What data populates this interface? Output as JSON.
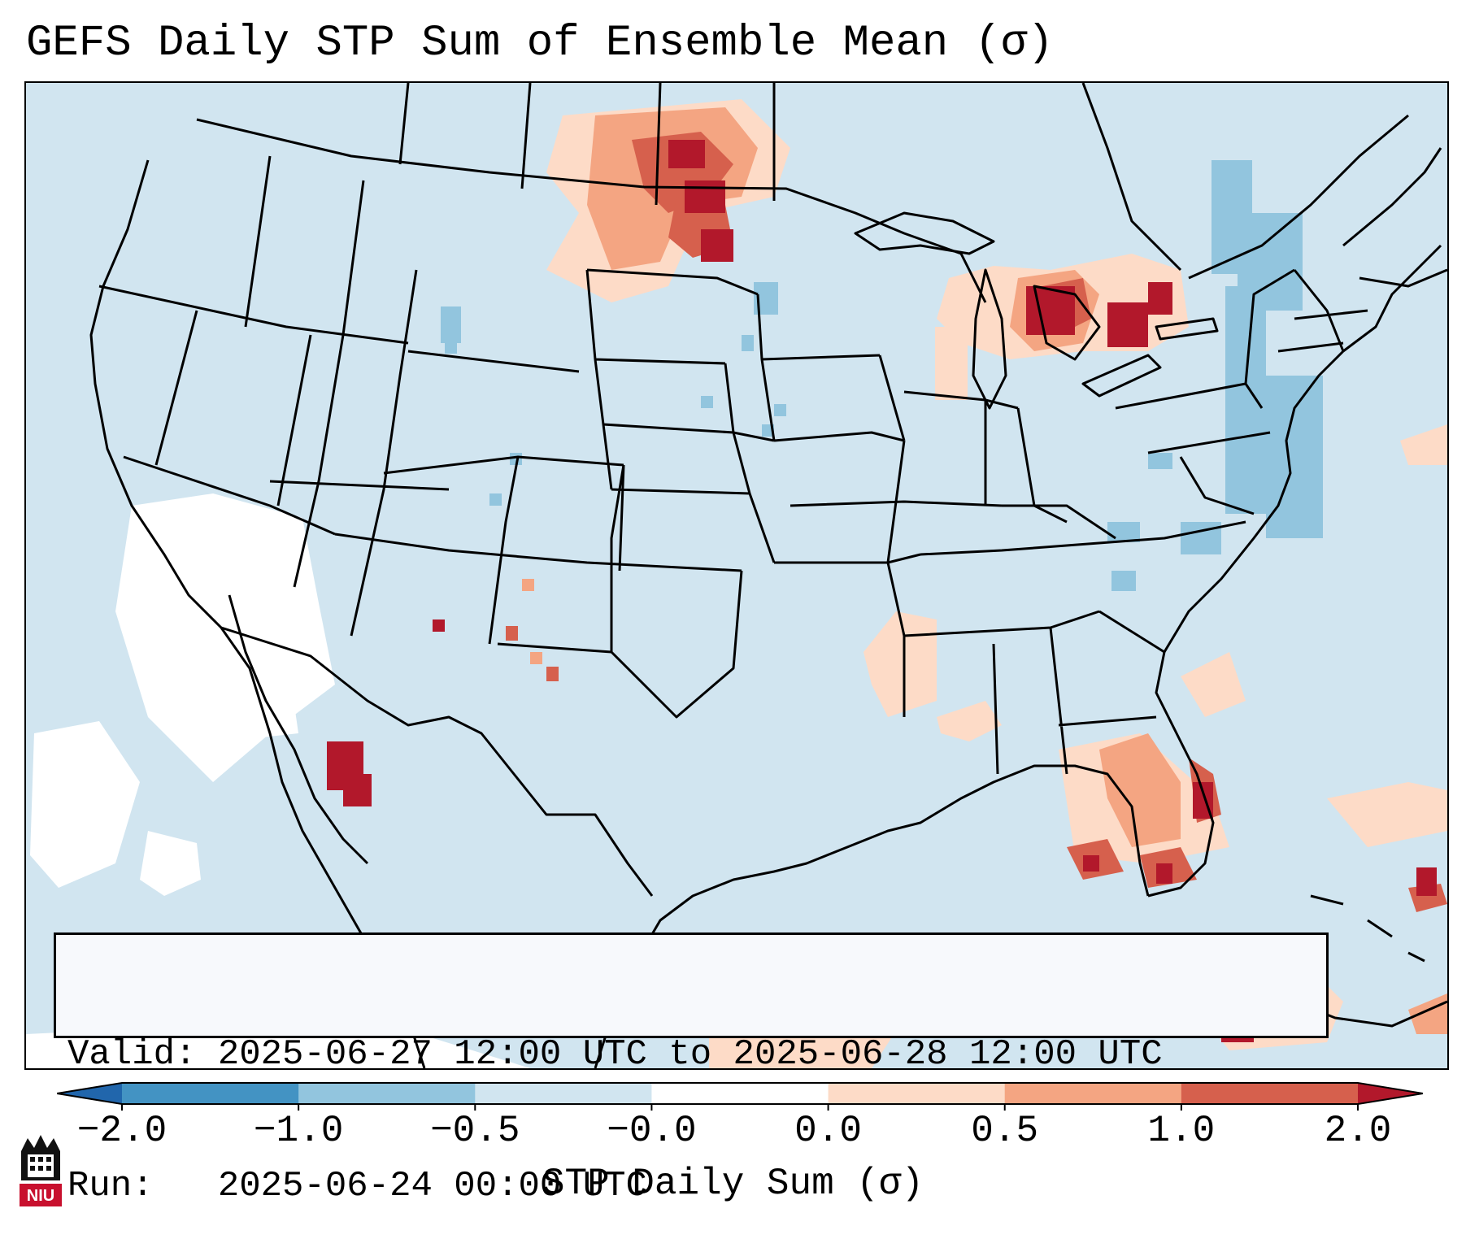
{
  "title": "GEFS Daily STP Sum of Ensemble Mean (σ)",
  "info": {
    "valid_label": "Valid:",
    "valid_value": "2025-06-27 12:00 UTC to 2025-06-28 12:00 UTC",
    "run_label": "Run:",
    "run_value": "2025-06-24 00:00 UTC"
  },
  "colorbar": {
    "title": "STP Daily Sum (σ)",
    "ticks": [
      "−2.0",
      "−1.0",
      "−0.5",
      "−0.0",
      "0.0",
      "0.5",
      "1.0",
      "2.0"
    ],
    "bins": [
      {
        "range": "<-2.0",
        "color": "#2166ac"
      },
      {
        "range": "-2.0 to -1.0",
        "color": "#4393c3"
      },
      {
        "range": "-1.0 to -0.5",
        "color": "#92c5de"
      },
      {
        "range": "-0.5 to -0.0",
        "color": "#d1e5f0"
      },
      {
        "range": "-0.0 to 0.0",
        "color": "#ffffff"
      },
      {
        "range": "0.0 to 0.5",
        "color": "#fddbc7"
      },
      {
        "range": "0.5 to 1.0",
        "color": "#f4a582"
      },
      {
        "range": "1.0 to 2.0",
        "color": "#d6604d"
      },
      {
        "range": ">2.0",
        "color": "#b2182b"
      }
    ]
  },
  "logo": {
    "text": "NIU"
  },
  "colors": {
    "background": "#d1e5f0",
    "outline": "#000000"
  }
}
